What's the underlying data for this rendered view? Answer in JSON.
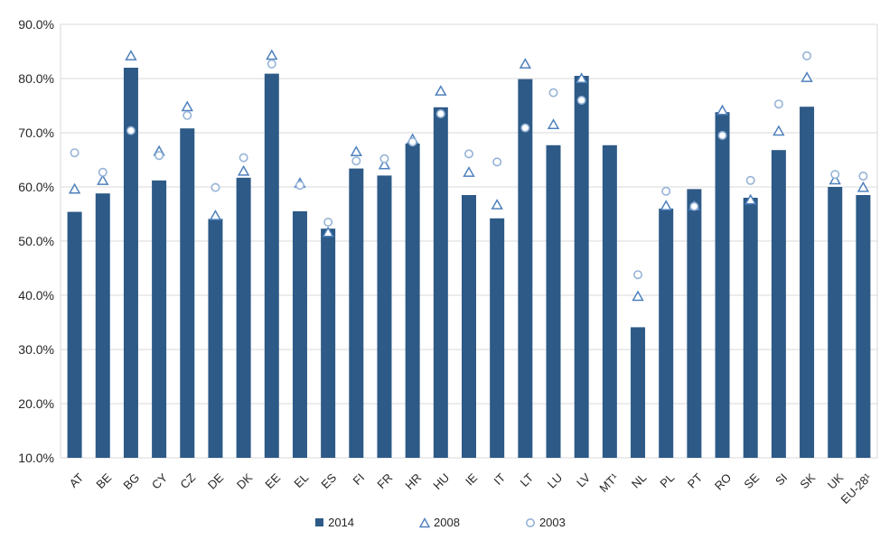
{
  "chart_data": {
    "type": "bar",
    "title": "",
    "xlabel": "",
    "ylabel": "",
    "categories": [
      "AT",
      "BE",
      "BG",
      "CY",
      "CZ",
      "DE",
      "DK",
      "EE",
      "EL",
      "ES",
      "FI",
      "FR",
      "HR",
      "HU",
      "IE",
      "IT",
      "LT",
      "LU",
      "LV",
      "MT¹",
      "NL",
      "PL",
      "PT",
      "RO",
      "SE",
      "SI",
      "SK",
      "UK",
      "EU-28¹"
    ],
    "series": [
      {
        "name": "2014",
        "render": "bar",
        "marker": "square-filled",
        "color": "#2d5a87",
        "values": [
          55.4,
          58.8,
          82.0,
          61.2,
          70.8,
          54.1,
          61.7,
          80.9,
          55.5,
          52.3,
          63.4,
          62.1,
          68.0,
          74.7,
          58.5,
          54.2,
          79.9,
          67.7,
          80.5,
          67.7,
          34.1,
          56.0,
          59.6,
          73.8,
          58.0,
          66.8,
          74.8,
          60.0,
          58.5
        ]
      },
      {
        "name": "2008",
        "render": "scatter",
        "marker": "triangle-outline",
        "color": "#4f81bd",
        "values": [
          59.6,
          61.2,
          84.2,
          66.6,
          74.8,
          54.7,
          62.9,
          84.3,
          60.7,
          51.6,
          66.5,
          64.1,
          68.8,
          77.7,
          62.7,
          56.7,
          82.7,
          71.5,
          80.0,
          null,
          39.8,
          56.5,
          56.5,
          74.1,
          57.6,
          70.3,
          80.2,
          61.3,
          59.9
        ]
      },
      {
        "name": "2003",
        "render": "scatter",
        "marker": "circle-outline",
        "color": "#95b3d7",
        "values": [
          66.3,
          62.7,
          70.4,
          65.8,
          73.2,
          59.9,
          65.4,
          82.7,
          60.3,
          53.5,
          64.8,
          65.2,
          68.3,
          73.5,
          66.1,
          64.6,
          70.9,
          77.4,
          76.0,
          null,
          43.8,
          59.2,
          56.4,
          69.5,
          61.2,
          75.3,
          84.2,
          62.3,
          62.0
        ]
      }
    ],
    "ylim": [
      10,
      90
    ],
    "yticks": [
      90,
      80,
      70,
      60,
      50,
      40,
      30,
      20,
      10
    ],
    "ytick_labels": [
      "90.0%",
      "80.0%",
      "70.0%",
      "60.0%",
      "50.0%",
      "40.0%",
      "30.0%",
      "20.0%",
      "10.0%"
    ],
    "grid": "horizontal",
    "gridline_color": "#d9d9d9",
    "plot_border_color": "#d9d9d9",
    "text_color": "#262626",
    "background_color": "#ffffff",
    "legend_position": "bottom",
    "legend_labels": [
      "2014",
      "2008",
      "2003"
    ]
  }
}
